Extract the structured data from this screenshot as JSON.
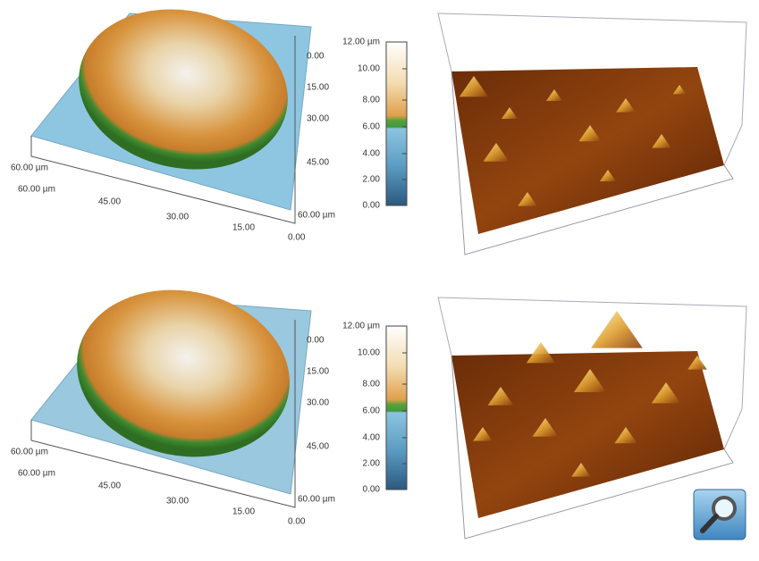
{
  "panels": [
    {
      "front_axis_labels": [
        "60.00 µm",
        "60.00 µm",
        "45.00",
        "30.00",
        "15.00",
        "0.00"
      ],
      "side_axis_labels": [
        "0.00",
        "15.00",
        "30.00",
        "45.00",
        "60.00 µm"
      ],
      "colorbar_labels": [
        "12.00 µm",
        "10.00",
        "8.00",
        "6.00",
        "4.00",
        "2.00",
        "0.00"
      ]
    },
    {
      "front_axis_labels": [
        "60.00 µm",
        "60.00 µm",
        "45.00",
        "30.00",
        "15.00",
        "0.00"
      ],
      "side_axis_labels": [
        "0.00",
        "15.00",
        "30.00",
        "45.00",
        "60.00 µm"
      ],
      "colorbar_labels": [
        "12.00 µm",
        "10.00",
        "8.00",
        "6.00",
        "4.00",
        "2.00",
        "0.00"
      ]
    }
  ]
}
